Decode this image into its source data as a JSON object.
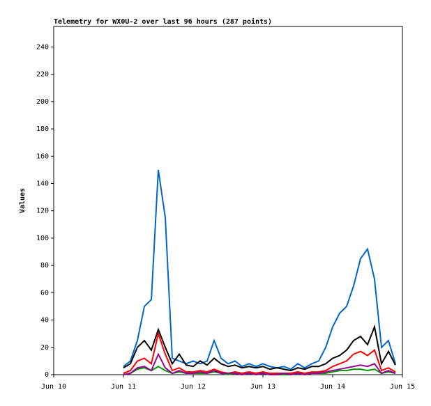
{
  "chart_data": {
    "type": "line",
    "title": "Telemetry for WX0U-2 over last 96 hours (287 points)",
    "y_label": "Values",
    "x": [
      1.0,
      1.1,
      1.2,
      1.3,
      1.4,
      1.5,
      1.6,
      1.7,
      1.8,
      1.9,
      2.0,
      2.1,
      2.2,
      2.3,
      2.4,
      2.5,
      2.6,
      2.7,
      2.8,
      2.9,
      3.0,
      3.1,
      3.2,
      3.3,
      3.4,
      3.5,
      3.6,
      3.7,
      3.8,
      3.9,
      4.0,
      4.1,
      4.2,
      4.3,
      4.4,
      4.5,
      4.6,
      4.7,
      4.8,
      4.9
    ],
    "series": [
      {
        "color": "#0066cc",
        "values": [
          6,
          10,
          25,
          50,
          55,
          150,
          115,
          12,
          10,
          8,
          10,
          8,
          10,
          25,
          12,
          8,
          10,
          6,
          8,
          6,
          8,
          6,
          5,
          6,
          4,
          8,
          5,
          8,
          10,
          20,
          35,
          45,
          50,
          65,
          85,
          92,
          70,
          20,
          25,
          8
        ]
      },
      {
        "color": "#000000",
        "values": [
          5,
          8,
          20,
          25,
          18,
          33,
          20,
          8,
          15,
          7,
          6,
          10,
          7,
          12,
          8,
          6,
          7,
          5,
          6,
          5,
          6,
          4,
          5,
          4,
          3,
          5,
          4,
          6,
          6,
          8,
          12,
          14,
          18,
          25,
          28,
          22,
          35,
          8,
          17,
          7
        ]
      },
      {
        "color": "#ff0000",
        "values": [
          1,
          3,
          10,
          12,
          8,
          30,
          15,
          3,
          5,
          2,
          2,
          3,
          2,
          4,
          2,
          1,
          2,
          1,
          2,
          1,
          2,
          1,
          1,
          1,
          1,
          2,
          1,
          2,
          2,
          3,
          6,
          8,
          10,
          15,
          17,
          14,
          18,
          3,
          5,
          2
        ]
      },
      {
        "color": "#009900",
        "values": [
          0,
          1,
          4,
          5,
          3,
          6,
          3,
          1,
          2,
          1,
          1,
          1,
          1,
          2,
          1,
          0,
          1,
          0,
          1,
          0,
          1,
          0,
          0,
          0,
          0,
          1,
          0,
          1,
          1,
          1,
          2,
          3,
          3,
          4,
          4,
          3,
          4,
          1,
          2,
          1
        ]
      },
      {
        "color": "#990099",
        "values": [
          0,
          1,
          5,
          6,
          3,
          15,
          5,
          1,
          3,
          1,
          1,
          2,
          1,
          3,
          1,
          1,
          1,
          0,
          1,
          0,
          1,
          0,
          0,
          1,
          0,
          1,
          0,
          1,
          1,
          2,
          3,
          4,
          5,
          6,
          7,
          6,
          8,
          1,
          3,
          1
        ]
      }
    ],
    "xlim": [
      0,
      5
    ],
    "xticks": [
      {
        "value": 0,
        "label": "Jun 10"
      },
      {
        "value": 1,
        "label": "Jun 11"
      },
      {
        "value": 2,
        "label": "Jun 12"
      },
      {
        "value": 3,
        "label": "Jun 13"
      },
      {
        "value": 4,
        "label": "Jun 14"
      },
      {
        "value": 5,
        "label": "Jun 15"
      }
    ],
    "ylim": [
      0,
      255
    ],
    "yticks": [
      0,
      20,
      40,
      60,
      80,
      100,
      120,
      140,
      160,
      180,
      200,
      220,
      240
    ]
  }
}
